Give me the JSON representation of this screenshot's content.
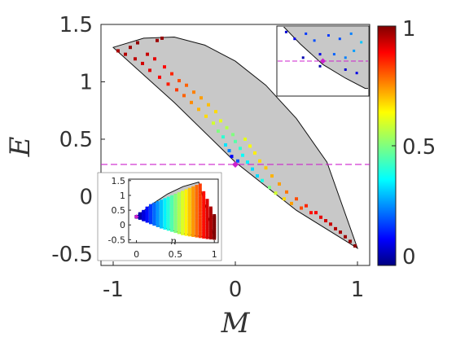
{
  "chart_data": {
    "type": "scatter",
    "xlabel": "M",
    "ylabel": "E",
    "xlim": [
      -1.1,
      1.1
    ],
    "ylim": [
      -0.6,
      1.5
    ],
    "x_ticks": [
      -1,
      0,
      1
    ],
    "x_tick_labels": [
      "-1",
      "0",
      "1"
    ],
    "y_ticks": [
      1.5,
      1,
      0.5,
      0,
      -0.5
    ],
    "y_tick_labels": [
      "1.5",
      "1",
      "0.5",
      "0",
      "-0.5"
    ],
    "region": {
      "upper_boundary": [
        [
          -1,
          1.3
        ],
        [
          -0.75,
          1.38
        ],
        [
          -0.5,
          1.39
        ],
        [
          -0.25,
          1.32
        ],
        [
          0,
          1.18
        ],
        [
          0.25,
          0.97
        ],
        [
          0.5,
          0.68
        ],
        [
          0.75,
          0.3
        ],
        [
          1,
          -0.45
        ]
      ],
      "lower_boundary": [
        [
          -1,
          1.3
        ],
        [
          -0.5,
          0.82
        ],
        [
          0,
          0.3
        ],
        [
          0.5,
          -0.12
        ],
        [
          1,
          -0.45
        ]
      ],
      "fill_color": "#c8c8c8"
    },
    "reference_line": {
      "y": 0.28,
      "color": "#cc22cc",
      "style": "dashed"
    },
    "marked_point": {
      "x": 0,
      "y": 0.28,
      "color": "#cc22cc"
    },
    "series": [
      {
        "points": [
          [
            -0.96,
            1.27,
            0.96
          ],
          [
            -0.9,
            1.24,
            0.95
          ],
          [
            -0.86,
            1.3,
            0.97
          ],
          [
            -0.82,
            1.2,
            0.94
          ],
          [
            -0.8,
            1.34,
            0.98
          ],
          [
            -0.76,
            1.16,
            0.92
          ],
          [
            -0.72,
            1.24,
            0.93
          ],
          [
            -0.7,
            1.1,
            0.9
          ],
          [
            -0.66,
            1.2,
            0.9
          ],
          [
            -0.64,
            1.36,
            0.97
          ],
          [
            -0.62,
            1.04,
            0.88
          ],
          [
            -0.58,
            1.13,
            0.87
          ],
          [
            -0.55,
            0.98,
            0.85
          ],
          [
            -0.52,
            1.07,
            0.84
          ],
          [
            -0.48,
            0.93,
            0.82
          ],
          [
            -0.46,
            1.01,
            0.8
          ],
          [
            -0.42,
            0.88,
            0.78
          ],
          [
            -0.4,
            0.97,
            0.78
          ],
          [
            -0.36,
            0.82,
            0.74
          ],
          [
            -0.34,
            0.91,
            0.75
          ],
          [
            -0.3,
            0.76,
            0.7
          ],
          [
            -0.28,
            0.86,
            0.72
          ],
          [
            -0.24,
            0.7,
            0.66
          ],
          [
            -0.22,
            0.8,
            0.69
          ],
          [
            -0.18,
            0.64,
            0.58
          ],
          [
            -0.16,
            0.74,
            0.66
          ],
          [
            -0.14,
            0.57,
            0.5
          ],
          [
            -0.12,
            0.66,
            0.6
          ],
          [
            -0.1,
            0.52,
            0.42
          ],
          [
            -0.08,
            0.45,
            0.35
          ],
          [
            -0.07,
            0.6,
            0.55
          ],
          [
            -0.05,
            0.4,
            0.25
          ],
          [
            -0.03,
            0.35,
            0.12
          ],
          [
            -0.02,
            0.54,
            0.5
          ],
          [
            0.0,
            0.48,
            0.46
          ],
          [
            0.02,
            0.31,
            0.2
          ],
          [
            0.04,
            0.42,
            0.42
          ],
          [
            0.06,
            0.36,
            0.38
          ],
          [
            0.08,
            0.5,
            0.6
          ],
          [
            0.1,
            0.3,
            0.36
          ],
          [
            0.12,
            0.44,
            0.62
          ],
          [
            0.14,
            0.24,
            0.34
          ],
          [
            0.16,
            0.38,
            0.64
          ],
          [
            0.18,
            0.18,
            0.34
          ],
          [
            0.2,
            0.31,
            0.66
          ],
          [
            0.22,
            0.14,
            0.4
          ],
          [
            0.25,
            0.25,
            0.68
          ],
          [
            0.28,
            0.08,
            0.5
          ],
          [
            0.3,
            0.18,
            0.7
          ],
          [
            0.33,
            0.03,
            0.58
          ],
          [
            0.36,
            0.11,
            0.72
          ],
          [
            0.4,
            -0.02,
            0.66
          ],
          [
            0.42,
            0.04,
            0.76
          ],
          [
            0.46,
            -0.06,
            0.72
          ],
          [
            0.5,
            -0.02,
            0.8
          ],
          [
            0.54,
            -0.1,
            0.8
          ],
          [
            0.58,
            -0.08,
            0.84
          ],
          [
            0.62,
            -0.14,
            0.86
          ],
          [
            0.66,
            -0.14,
            0.88
          ],
          [
            0.7,
            -0.18,
            0.9
          ],
          [
            0.74,
            -0.21,
            0.92
          ],
          [
            0.78,
            -0.24,
            0.93
          ],
          [
            0.82,
            -0.28,
            0.95
          ],
          [
            0.86,
            -0.31,
            0.96
          ],
          [
            0.9,
            -0.35,
            0.97
          ],
          [
            0.94,
            -0.39,
            0.98
          ],
          [
            0.98,
            -0.43,
            0.99
          ],
          [
            -0.6,
            1.38,
            0.98
          ]
        ]
      }
    ],
    "colorbar": {
      "colormap": "jet",
      "range": [
        0,
        1
      ],
      "ticks": [
        1,
        0.5,
        0
      ],
      "tick_labels": [
        "1",
        "0.5",
        "0"
      ]
    },
    "inset_bottom": {
      "xlabel": "n",
      "xlim": [
        -0.1,
        1.05
      ],
      "ylim": [
        -0.6,
        1.55
      ],
      "x_ticks": [
        0,
        0.5,
        1
      ],
      "x_tick_labels": [
        "0",
        "0.5",
        "1"
      ],
      "y_ticks": [
        1.5,
        1,
        0.5,
        0,
        -0.5
      ],
      "y_tick_labels": [
        "1.5",
        "1",
        "0.5",
        "0",
        "-0.5"
      ],
      "upper_boundary": [
        [
          0,
          0.28
        ],
        [
          0.2,
          0.7
        ],
        [
          0.4,
          1.05
        ],
        [
          0.6,
          1.3
        ],
        [
          0.8,
          1.45
        ],
        [
          1,
          -0.45
        ]
      ],
      "lower_boundary": [
        [
          0,
          0.28
        ],
        [
          0.3,
          -0.05
        ],
        [
          0.6,
          -0.3
        ],
        [
          0.9,
          -0.42
        ],
        [
          1,
          -0.45
        ]
      ],
      "fill_color": "#c8c8c8"
    },
    "inset_zoom": {
      "xlim": [
        -0.08,
        0.08
      ],
      "ylim": [
        0.18,
        0.38
      ],
      "reference_line_y": 0.28,
      "points": [
        [
          -0.065,
          0.365,
          0.08
        ],
        [
          -0.05,
          0.345,
          0.12
        ],
        [
          -0.03,
          0.36,
          0.18
        ],
        [
          -0.015,
          0.34,
          0.2
        ],
        [
          0.01,
          0.355,
          0.18
        ],
        [
          0.03,
          0.345,
          0.2
        ],
        [
          0.05,
          0.36,
          0.25
        ],
        [
          0.068,
          0.335,
          0.32
        ],
        [
          -0.005,
          0.3,
          0.1
        ],
        [
          0.02,
          0.3,
          0.22
        ],
        [
          0.04,
          0.29,
          0.25
        ],
        [
          0.055,
          0.31,
          0.28
        ],
        [
          -0.035,
          0.29,
          0.05
        ],
        [
          -0.005,
          0.265,
          0.04
        ],
        [
          0.04,
          0.255,
          0.08
        ],
        [
          0.06,
          0.245,
          0.1
        ]
      ],
      "marked_point": {
        "x": 0,
        "y": 0.28
      }
    }
  }
}
